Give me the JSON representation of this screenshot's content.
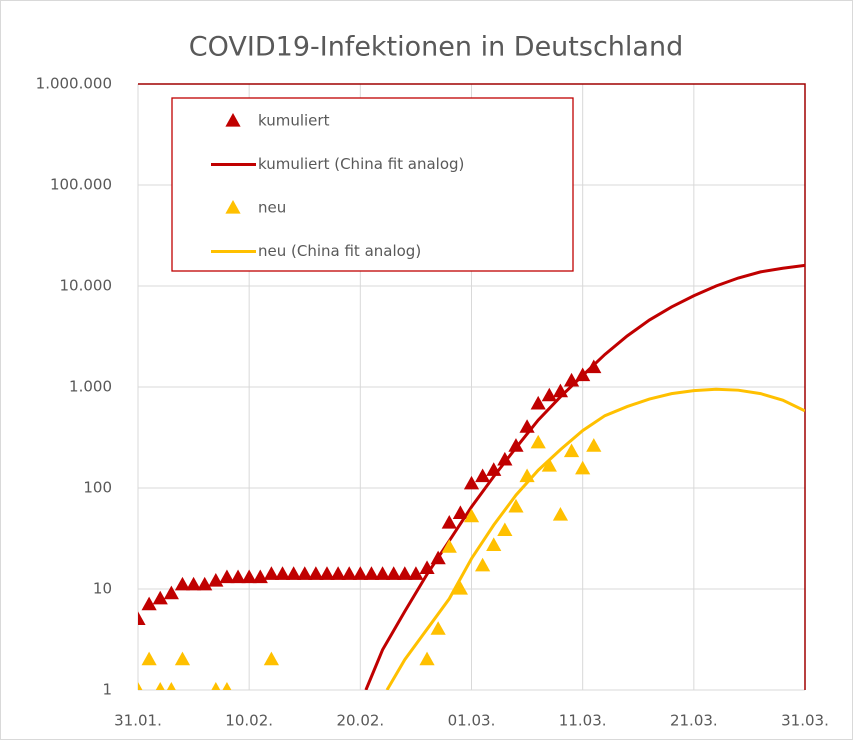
{
  "chart_data": {
    "type": "scatter",
    "title": "COVID19-Infektionen in Deutschland",
    "log_y": true,
    "grid": true,
    "legend": "upper left",
    "xlim": [
      0,
      60
    ],
    "xticks": [
      {
        "value": 0,
        "label": "31.01."
      },
      {
        "value": 10,
        "label": "10.02."
      },
      {
        "value": 20,
        "label": "20.02."
      },
      {
        "value": 30,
        "label": "01.03."
      },
      {
        "value": 40,
        "label": "11.03."
      },
      {
        "value": 50,
        "label": "21.03."
      },
      {
        "value": 60,
        "label": "31.03."
      }
    ],
    "ylim": [
      1,
      1000000
    ],
    "yticks": [
      1,
      10,
      100,
      {
        "value": 1000,
        "label": "1.000"
      },
      {
        "value": 10000,
        "label": "10.000"
      },
      {
        "value": 100000,
        "label": "100.000"
      },
      {
        "value": 1000000,
        "label": "1.000.000"
      }
    ],
    "series": [
      {
        "name": "kumuliert",
        "color": "#c00000",
        "mode": "markers",
        "x": [
          0,
          1,
          2,
          3,
          4,
          5,
          6,
          7,
          8,
          9,
          10,
          11,
          12,
          13,
          14,
          15,
          16,
          17,
          18,
          19,
          20,
          21,
          22,
          23,
          24,
          25,
          26,
          27,
          28,
          29,
          30,
          31,
          32,
          33,
          34,
          35,
          36,
          37,
          38,
          39,
          40,
          41
        ],
        "values": [
          5,
          7,
          8,
          9,
          11,
          11,
          11,
          12,
          13,
          13,
          13,
          13,
          14,
          14,
          14,
          14,
          14,
          14,
          14,
          14,
          14,
          14,
          14,
          14,
          14,
          14,
          16,
          20,
          45,
          56,
          110,
          130,
          150,
          190,
          260,
          400,
          680,
          820,
          900,
          1150,
          1300,
          1560
        ]
      },
      {
        "name": "kumuliert (China fit analog)",
        "color": "#c00000",
        "mode": "line",
        "x": [
          20.5,
          22,
          24,
          26,
          28,
          30,
          32,
          34,
          36,
          38,
          40,
          42,
          44,
          46,
          48,
          50,
          52,
          54,
          56,
          58,
          60
        ],
        "values": [
          1,
          2.5,
          6,
          14,
          30,
          65,
          130,
          250,
          470,
          800,
          1300,
          2100,
          3200,
          4600,
          6200,
          8000,
          10000,
          12000,
          13800,
          15000,
          16000
        ]
      },
      {
        "name": "neu",
        "color": "#ffc000",
        "mode": "markers",
        "x": [
          0,
          1,
          2,
          3,
          4,
          7,
          8,
          12,
          26,
          27,
          28,
          29,
          30,
          31,
          32,
          33,
          34,
          35,
          36,
          37,
          38,
          39,
          40,
          41
        ],
        "values": [
          1,
          2,
          1,
          1,
          2,
          1,
          1,
          2,
          2,
          4,
          26,
          10,
          52,
          17,
          27,
          38,
          65,
          130,
          280,
          165,
          54,
          230,
          155,
          260
        ]
      },
      {
        "name": "neu (China fit analog)",
        "color": "#ffc000",
        "mode": "line",
        "x": [
          22.4,
          24,
          26,
          28,
          30,
          32,
          34,
          36,
          38,
          40,
          42,
          44,
          46,
          48,
          50,
          52,
          54,
          56,
          58,
          60
        ],
        "values": [
          1,
          2,
          4,
          8,
          20,
          43,
          85,
          150,
          240,
          370,
          520,
          640,
          760,
          860,
          920,
          950,
          930,
          860,
          740,
          580
        ]
      }
    ]
  }
}
